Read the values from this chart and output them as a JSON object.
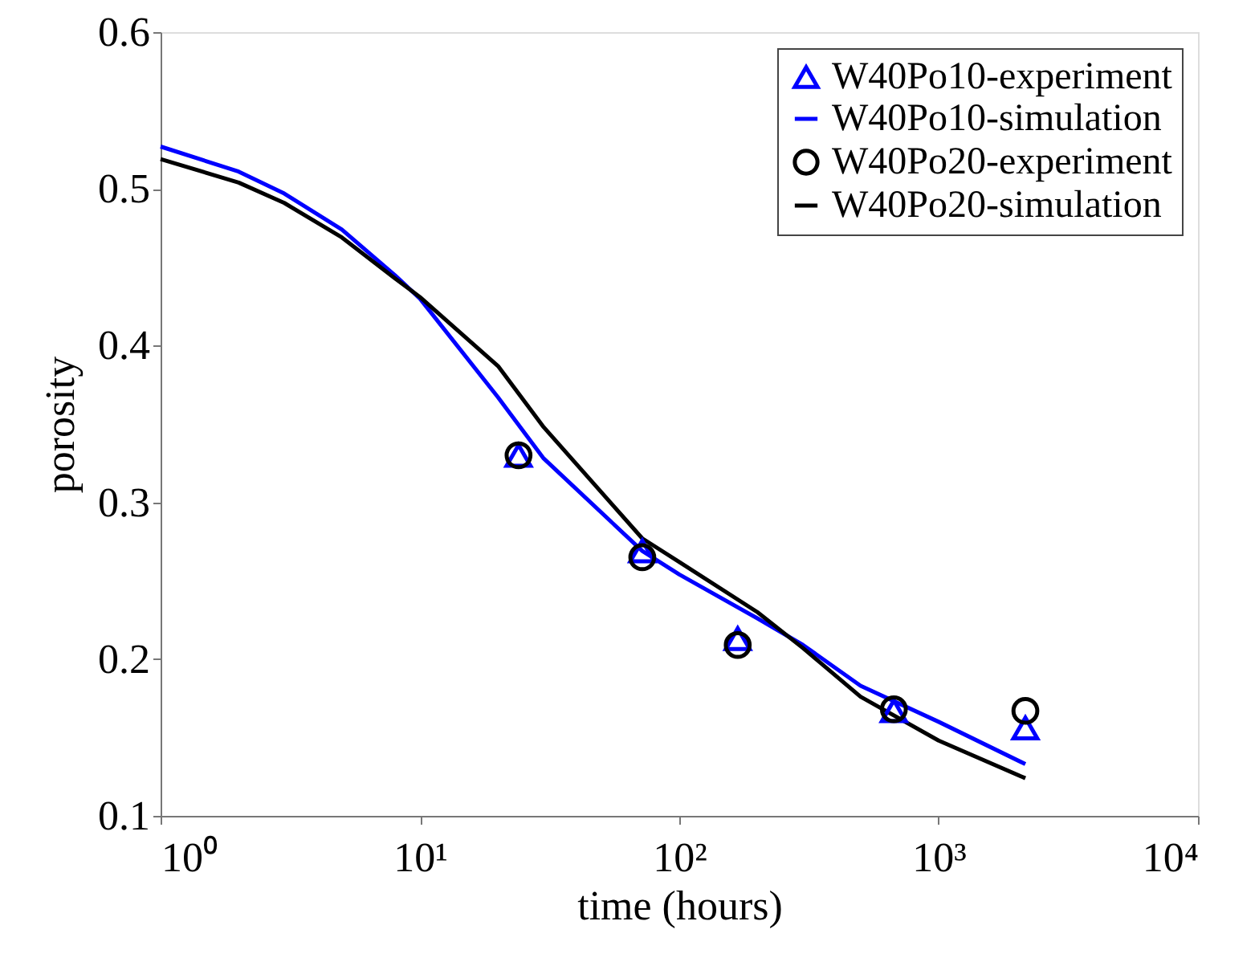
{
  "chart_data": {
    "type": "line",
    "xlabel": "time (hours)",
    "ylabel": "porosity",
    "log": "x",
    "xlim": [
      1,
      10000
    ],
    "ylim": [
      0.1,
      0.6
    ],
    "xticks": [
      {
        "value": 1,
        "label": "10⁰"
      },
      {
        "value": 10,
        "label": "10¹"
      },
      {
        "value": 100,
        "label": "10²"
      },
      {
        "value": 1000,
        "label": "10³"
      },
      {
        "value": 10000,
        "label": "10⁴"
      }
    ],
    "yticks": [
      0.1,
      0.2,
      0.3,
      0.4,
      0.5,
      0.6
    ],
    "grid": false,
    "legend": "top right",
    "series": [
      {
        "name": "W40Po10-experiment",
        "type": "scatter",
        "marker": "triangle",
        "color": "#0000ff",
        "x": [
          24,
          72,
          168,
          672,
          2160
        ],
        "values": [
          0.33,
          0.269,
          0.213,
          0.167,
          0.156
        ]
      },
      {
        "name": "W40Po10-simulation",
        "type": "line",
        "color": "#0000ff",
        "x": [
          1,
          2,
          3,
          5,
          8,
          10,
          20,
          30,
          72,
          100,
          200,
          300,
          500,
          1000,
          2160
        ],
        "values": [
          0.527,
          0.511,
          0.497,
          0.474,
          0.445,
          0.43,
          0.367,
          0.328,
          0.269,
          0.254,
          0.226,
          0.209,
          0.183,
          0.16,
          0.133
        ]
      },
      {
        "name": "W40Po20-experiment",
        "type": "scatter",
        "marker": "circle",
        "color": "#000000",
        "x": [
          24,
          72,
          168,
          672,
          2160
        ],
        "values": [
          0.33,
          0.265,
          0.209,
          0.168,
          0.167
        ]
      },
      {
        "name": "W40Po20-simulation",
        "type": "line",
        "color": "#000000",
        "x": [
          1,
          2,
          3,
          5,
          8,
          10,
          20,
          30,
          72,
          100,
          200,
          300,
          500,
          1000,
          2160
        ],
        "values": [
          0.519,
          0.504,
          0.491,
          0.469,
          0.443,
          0.431,
          0.387,
          0.348,
          0.277,
          0.262,
          0.23,
          0.207,
          0.176,
          0.148,
          0.124
        ]
      }
    ]
  }
}
